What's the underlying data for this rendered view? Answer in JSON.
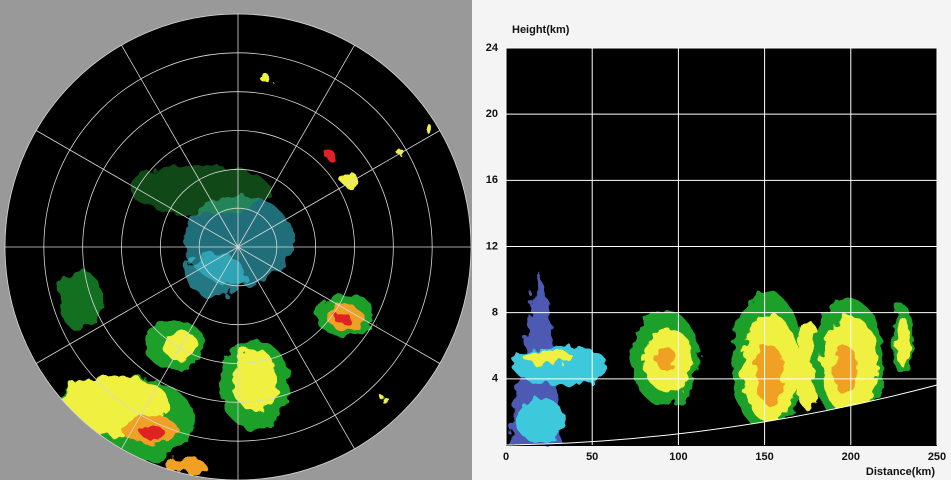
{
  "chart_data": {
    "type": "rhi",
    "y_label": "Height(km)",
    "x_label": "Distance(km)",
    "xlim": [
      0,
      250
    ],
    "xticks": [
      0,
      50,
      100,
      150,
      200,
      250
    ],
    "ylim": [
      0,
      24
    ],
    "yticks": [
      4,
      8,
      12,
      16,
      20,
      24
    ],
    "grid": true,
    "grid_color": "#ffffff",
    "plot_background": "#000000"
  }
}
